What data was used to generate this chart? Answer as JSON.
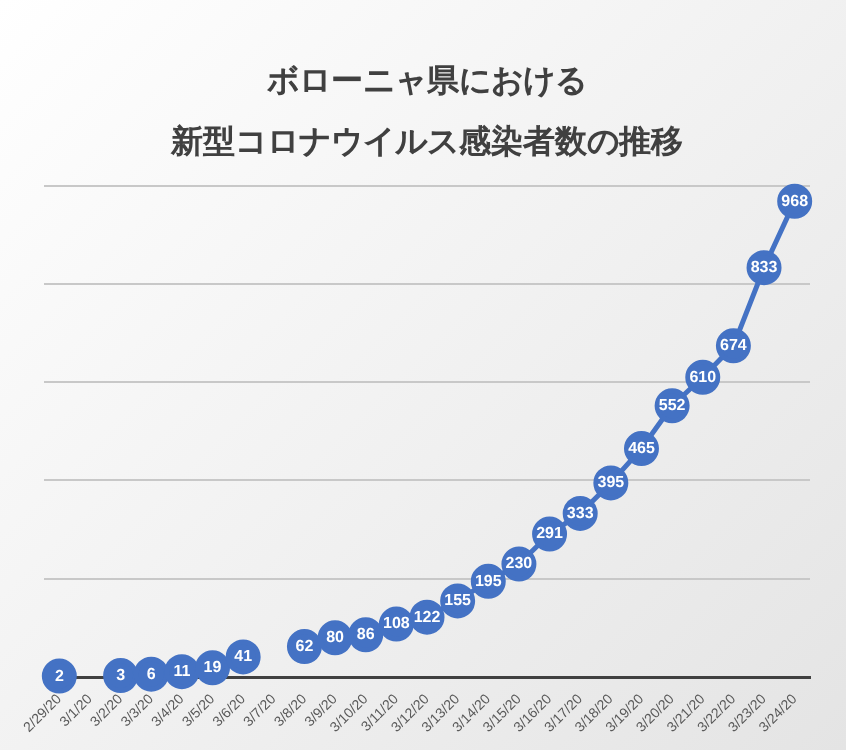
{
  "chart_data": {
    "type": "line",
    "title": [
      "ボローニャ県における",
      "新型コロナウイルス感染者数の推移"
    ],
    "categories": [
      "2/29/20",
      "3/1/20",
      "3/2/20",
      "3/3/20",
      "3/4/20",
      "3/5/20",
      "3/6/20",
      "3/7/20",
      "3/8/20",
      "3/9/20",
      "3/10/20",
      "3/11/20",
      "3/12/20",
      "3/13/20",
      "3/14/20",
      "3/15/20",
      "3/16/20",
      "3/17/20",
      "3/18/20",
      "3/19/20",
      "3/20/20",
      "3/21/20",
      "3/22/20",
      "3/23/20",
      "3/24/20"
    ],
    "series": [
      {
        "color": "#4472c4",
        "values": [
          2,
          null,
          3,
          6,
          11,
          19,
          41,
          null,
          62,
          80,
          86,
          108,
          122,
          155,
          195,
          230,
          291,
          333,
          395,
          465,
          552,
          610,
          674,
          833,
          968
        ]
      }
    ],
    "ylim": [
      0,
      1000
    ],
    "yticks": [
      {
        "value": 0,
        "label": null
      },
      {
        "value": 200,
        "label": null
      },
      {
        "value": 400,
        "label": null
      },
      {
        "value": 600,
        "label": null
      },
      {
        "value": 800,
        "label": null
      },
      {
        "value": 1000,
        "label": null
      }
    ],
    "tick_labels": "x",
    "grid": "y",
    "data_labels": true,
    "marker": "circle",
    "line_style": "solid",
    "legend": false
  }
}
